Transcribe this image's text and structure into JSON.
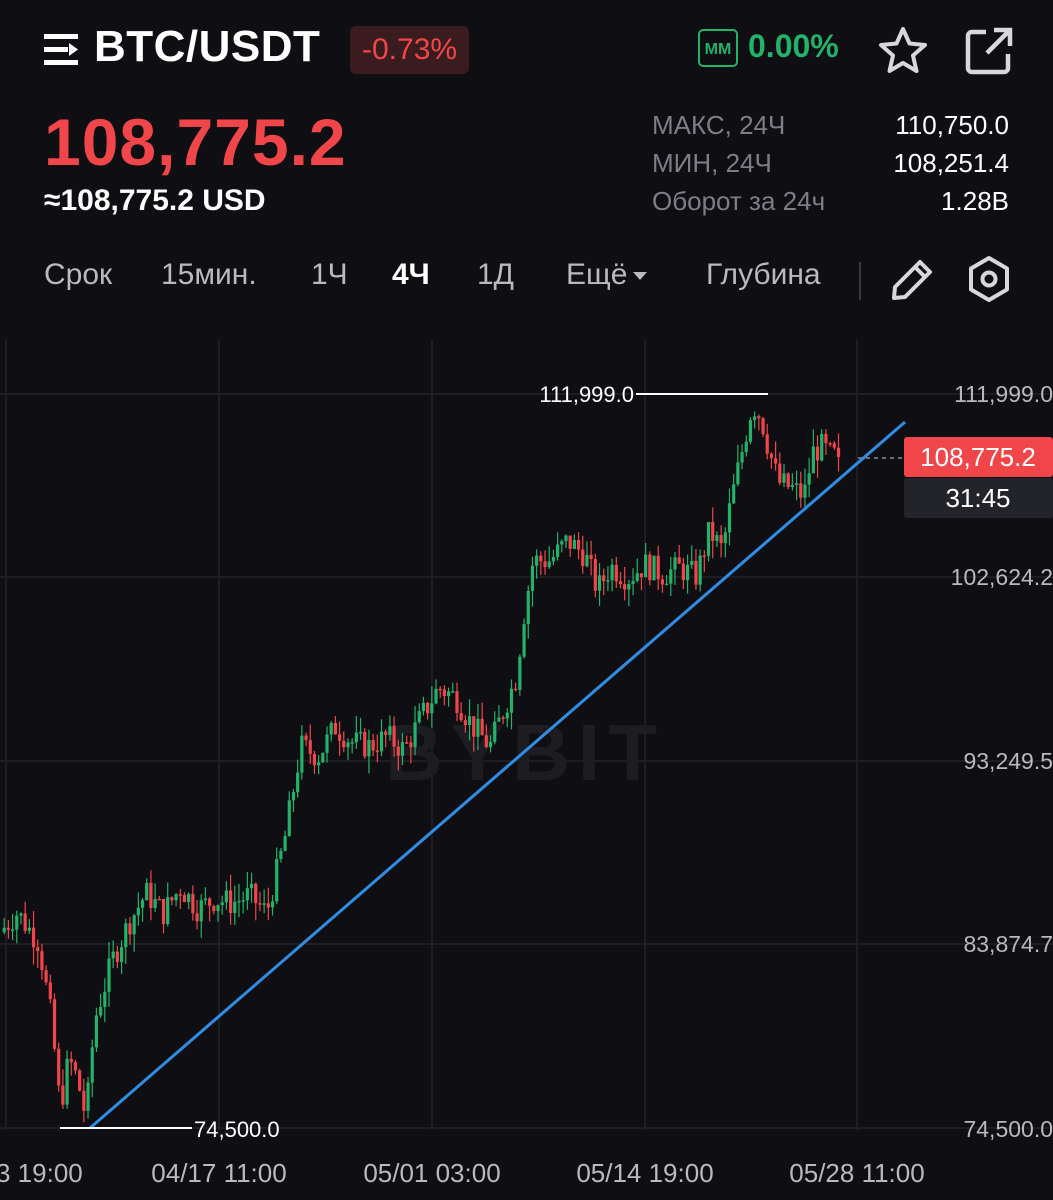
{
  "header": {
    "pair": "BTC/USDT",
    "change_pct": "-0.73%",
    "mm_badge": "MM",
    "mm_value": "0.00%",
    "icons": [
      "menu-icon",
      "star-icon",
      "share-icon"
    ]
  },
  "price": {
    "last": "108,775.2",
    "usd": "≈108,775.2 USD"
  },
  "stats": [
    {
      "label": "МАКС, 24Ч",
      "value": "110,750.0"
    },
    {
      "label": "МИН, 24Ч",
      "value": "108,251.4"
    },
    {
      "label": "Оборот за 24ч",
      "value": "1.28B"
    }
  ],
  "timeframes": {
    "term": "Срок",
    "m15": "15мин.",
    "h1": "1Ч",
    "h4": "4Ч",
    "d1": "1Д",
    "more": "Ещё",
    "depth": "Глубина",
    "active": "4Ч"
  },
  "colors": {
    "up": "#23b26a",
    "down": "#f0464a",
    "trendline": "#2f8de4",
    "background": "#0f0e12"
  },
  "chart_data": {
    "type": "candlestick",
    "interval": "4Ч",
    "y_ticks": [
      "111,999.0",
      "102,624.2",
      "93,249.5",
      "83,874.7",
      "74,500.0"
    ],
    "y_tick_values": [
      111999.0,
      102624.2,
      93249.5,
      83874.7,
      74500.0
    ],
    "ylim": [
      74500.0,
      111999.0
    ],
    "x_ticks": [
      "3 19:00",
      "04/17 11:00",
      "05/01 03:00",
      "05/14 19:00",
      "05/28 11:00"
    ],
    "high_marker": "111,999.0",
    "low_marker": "74,500.0",
    "current_price": "108,775.2",
    "countdown": "31:45",
    "watermark": "BYBIT",
    "price_path": [
      [
        0,
        84500
      ],
      [
        0.02,
        85500
      ],
      [
        0.045,
        84000
      ],
      [
        0.06,
        80000
      ],
      [
        0.07,
        75500
      ],
      [
        0.08,
        78000
      ],
      [
        0.09,
        77000
      ],
      [
        0.1,
        75000
      ],
      [
        0.11,
        80000
      ],
      [
        0.13,
        83000
      ],
      [
        0.15,
        85000
      ],
      [
        0.17,
        86500
      ],
      [
        0.19,
        85500
      ],
      [
        0.21,
        86800
      ],
      [
        0.23,
        85700
      ],
      [
        0.25,
        86200
      ],
      [
        0.27,
        86000
      ],
      [
        0.29,
        86400
      ],
      [
        0.31,
        85500
      ],
      [
        0.33,
        89000
      ],
      [
        0.35,
        94000
      ],
      [
        0.37,
        93500
      ],
      [
        0.39,
        95000
      ],
      [
        0.41,
        94200
      ],
      [
        0.43,
        94000
      ],
      [
        0.45,
        94500
      ],
      [
        0.47,
        93800
      ],
      [
        0.49,
        95500
      ],
      [
        0.51,
        97000
      ],
      [
        0.53,
        96500
      ],
      [
        0.55,
        95000
      ],
      [
        0.57,
        94000
      ],
      [
        0.58,
        95200
      ],
      [
        0.6,
        97500
      ],
      [
        0.61,
        101000
      ],
      [
        0.62,
        103500
      ],
      [
        0.64,
        103500
      ],
      [
        0.66,
        104500
      ],
      [
        0.68,
        103800
      ],
      [
        0.695,
        102000
      ],
      [
        0.71,
        103200
      ],
      [
        0.73,
        102600
      ],
      [
        0.75,
        103300
      ],
      [
        0.77,
        102800
      ],
      [
        0.79,
        103100
      ],
      [
        0.81,
        102700
      ],
      [
        0.825,
        105000
      ],
      [
        0.84,
        104000
      ],
      [
        0.85,
        106500
      ],
      [
        0.865,
        109500
      ],
      [
        0.875,
        111500
      ],
      [
        0.885,
        110800
      ],
      [
        0.895,
        109000
      ],
      [
        0.905,
        107500
      ],
      [
        0.92,
        107200
      ],
      [
        0.935,
        106800
      ],
      [
        0.945,
        109000
      ],
      [
        0.955,
        109300
      ],
      [
        0.965,
        108900
      ],
      [
        0.975,
        108775
      ]
    ]
  }
}
